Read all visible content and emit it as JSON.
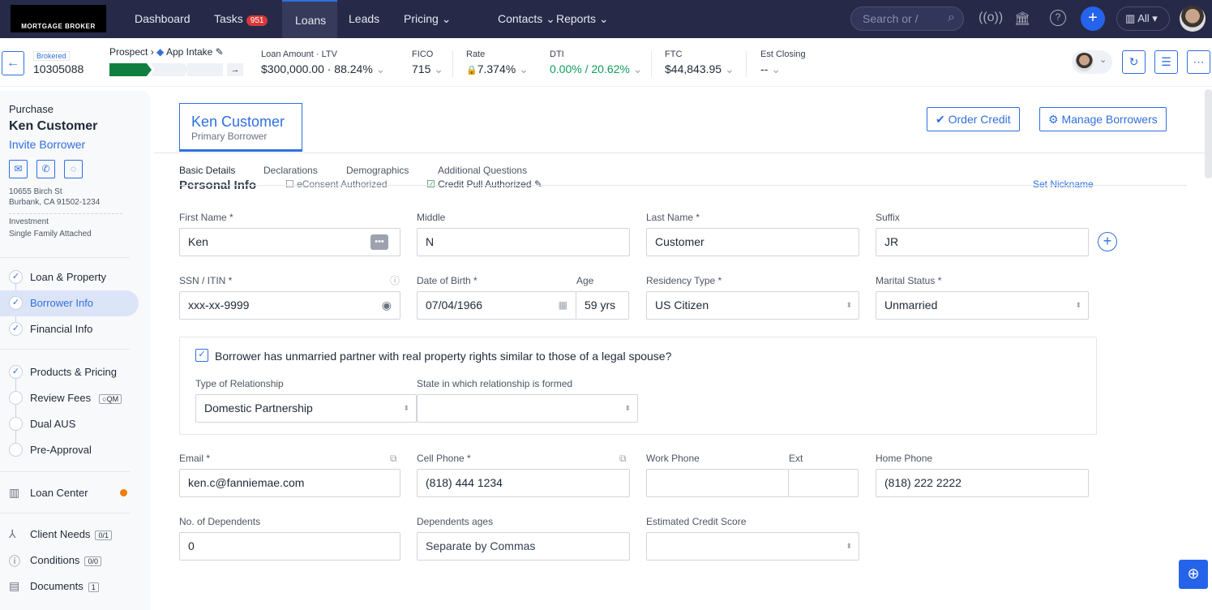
{
  "nav": {
    "logo": "MORTGAGE BROKER",
    "items": [
      {
        "label": "Dashboard"
      },
      {
        "label": "Tasks",
        "badge": "951"
      },
      {
        "label": "Loans",
        "active": true
      },
      {
        "label": "Leads"
      },
      {
        "label": "Pricing"
      },
      {
        "label": "Contacts"
      },
      {
        "label": "Reports"
      }
    ],
    "search_placeholder": "Search or /",
    "scope": "All"
  },
  "loan": {
    "channel": "Brokered",
    "number": "10305088",
    "stage": "Prospect",
    "substage": "App Intake",
    "progress_steps_done": 1,
    "progress_steps_total": 3,
    "fields": [
      {
        "label": "Loan Amount · LTV",
        "value": "$300,000.00 · 88.24%"
      },
      {
        "label": "FICO",
        "value": "715"
      },
      {
        "label": "Rate",
        "value": "7.374%"
      },
      {
        "label": "DTI",
        "value": "0.00% / 20.62%"
      },
      {
        "label": "FTC",
        "value": "$44,843.95"
      },
      {
        "label": "Est Closing",
        "value": "--"
      }
    ]
  },
  "sidebar": {
    "purpose": "Purchase",
    "name": "Ken Customer",
    "invite": "Invite Borrower",
    "address1": "10655 Birch St",
    "address2": "Burbank, CA 91502-1234",
    "occupancy": "Investment",
    "property_type": "Single Family  Attached",
    "steps": [
      {
        "label": "Loan & Property",
        "done": true
      },
      {
        "label": "Borrower Info",
        "done": true,
        "active": true
      },
      {
        "label": "Financial Info",
        "done": true
      },
      {
        "label": "Products & Pricing",
        "done": true
      },
      {
        "label": "Review Fees",
        "done": false,
        "tag": "QM"
      },
      {
        "label": "Dual AUS",
        "done": false
      },
      {
        "label": "Pre-Approval",
        "done": false
      }
    ],
    "loan_center": "Loan Center",
    "client_needs": "Client Needs",
    "client_needs_count": "0/1",
    "conditions": "Conditions",
    "conditions_count": "0/0",
    "documents": "Documents",
    "documents_count": "1"
  },
  "borrower": {
    "name": "Ken Customer",
    "role": "Primary Borrower",
    "order_credit": "Order Credit",
    "manage": "Manage Borrowers"
  },
  "tabs": [
    "Basic Details",
    "Declarations",
    "Demographics",
    "Additional Questions"
  ],
  "section": {
    "title": "Personal Info",
    "econsent": "eConsent Authorized",
    "credit_pull": "Credit Pull Authorized",
    "nickname": "Set Nickname"
  },
  "form": {
    "first_name": {
      "label": "First Name *",
      "value": "Ken"
    },
    "middle": {
      "label": "Middle",
      "value": "N"
    },
    "last_name": {
      "label": "Last Name *",
      "value": "Customer"
    },
    "suffix": {
      "label": "Suffix",
      "value": "JR"
    },
    "ssn": {
      "label": "SSN / ITIN *",
      "value": "xxx-xx-9999"
    },
    "dob": {
      "label": "Date of Birth *",
      "value": "07/04/1966"
    },
    "age": {
      "label": "Age",
      "value": "59 yrs"
    },
    "residency": {
      "label": "Residency Type *",
      "value": "US Citizen"
    },
    "marital": {
      "label": "Marital Status *",
      "value": "Unmarried"
    },
    "partner_check": "Borrower has unmarried partner with real property rights similar to those of a legal spouse?",
    "relationship": {
      "label": "Type of Relationship",
      "value": "Domestic Partnership"
    },
    "state": {
      "label": "State in which relationship is formed",
      "value": ""
    },
    "email": {
      "label": "Email *",
      "value": "ken.c@fanniemae.com"
    },
    "cell": {
      "label": "Cell Phone *",
      "value": "(818) 444 1234"
    },
    "work": {
      "label": "Work Phone",
      "value": ""
    },
    "ext": {
      "label": "Ext",
      "value": ""
    },
    "home": {
      "label": "Home Phone",
      "value": "(818) 222 2222"
    },
    "dependents": {
      "label": "No. of Dependents",
      "value": "0"
    },
    "dep_ages": {
      "label": "Dependents ages",
      "placeholder": "Separate by Commas"
    },
    "credit_score": {
      "label": "Estimated Credit Score",
      "value": ""
    }
  }
}
